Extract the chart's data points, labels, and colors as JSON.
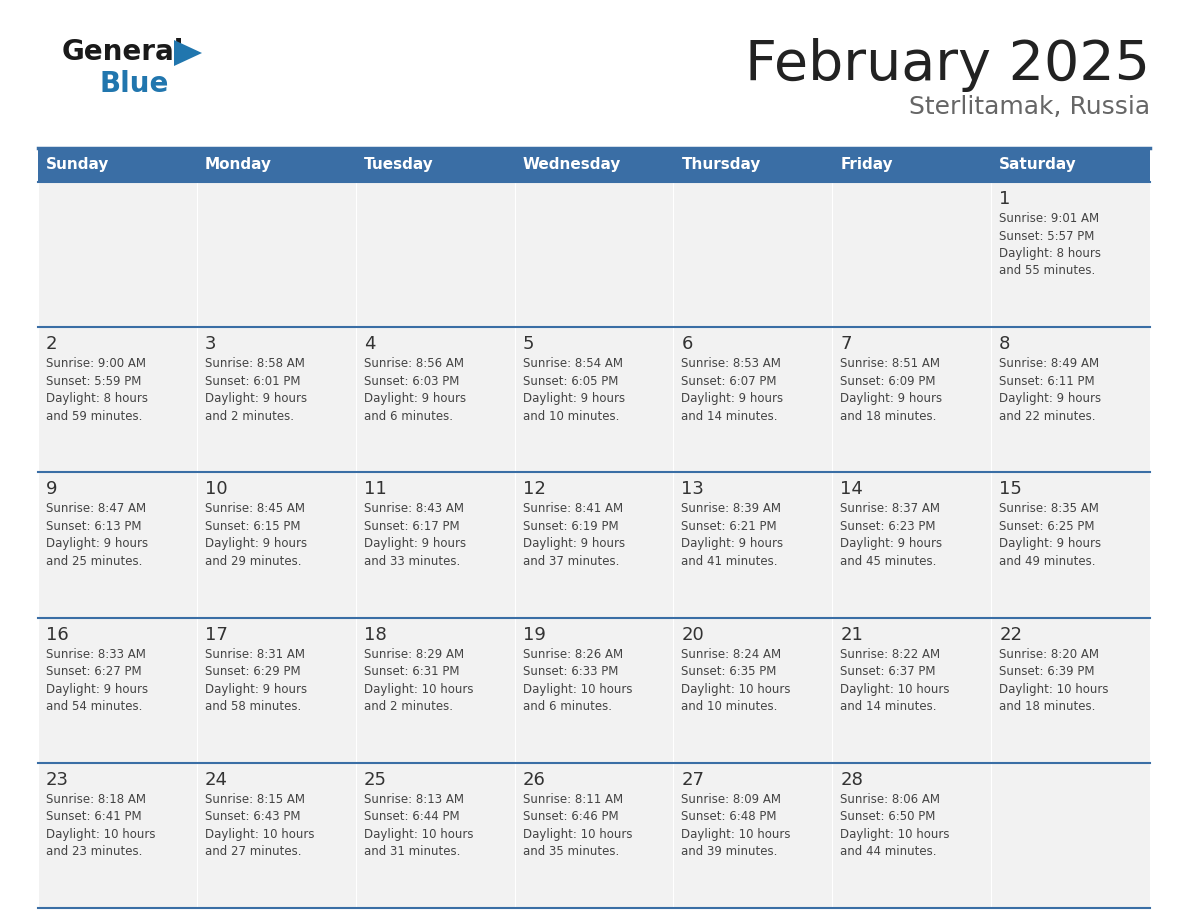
{
  "title": "February 2025",
  "subtitle": "Sterlitamak, Russia",
  "days_of_week": [
    "Sunday",
    "Monday",
    "Tuesday",
    "Wednesday",
    "Thursday",
    "Friday",
    "Saturday"
  ],
  "header_bg": "#3A6EA5",
  "header_text_color": "#FFFFFF",
  "cell_bg": "#F2F2F2",
  "border_color": "#3A6EA5",
  "text_color": "#444444",
  "day_num_color": "#333333",
  "title_color": "#222222",
  "subtitle_color": "#666666",
  "logo_general_color": "#1A1A1A",
  "logo_blue_color": "#2176AE",
  "weeks": [
    [
      {
        "day": null,
        "info": null
      },
      {
        "day": null,
        "info": null
      },
      {
        "day": null,
        "info": null
      },
      {
        "day": null,
        "info": null
      },
      {
        "day": null,
        "info": null
      },
      {
        "day": null,
        "info": null
      },
      {
        "day": 1,
        "info": "Sunrise: 9:01 AM\nSunset: 5:57 PM\nDaylight: 8 hours\nand 55 minutes."
      }
    ],
    [
      {
        "day": 2,
        "info": "Sunrise: 9:00 AM\nSunset: 5:59 PM\nDaylight: 8 hours\nand 59 minutes."
      },
      {
        "day": 3,
        "info": "Sunrise: 8:58 AM\nSunset: 6:01 PM\nDaylight: 9 hours\nand 2 minutes."
      },
      {
        "day": 4,
        "info": "Sunrise: 8:56 AM\nSunset: 6:03 PM\nDaylight: 9 hours\nand 6 minutes."
      },
      {
        "day": 5,
        "info": "Sunrise: 8:54 AM\nSunset: 6:05 PM\nDaylight: 9 hours\nand 10 minutes."
      },
      {
        "day": 6,
        "info": "Sunrise: 8:53 AM\nSunset: 6:07 PM\nDaylight: 9 hours\nand 14 minutes."
      },
      {
        "day": 7,
        "info": "Sunrise: 8:51 AM\nSunset: 6:09 PM\nDaylight: 9 hours\nand 18 minutes."
      },
      {
        "day": 8,
        "info": "Sunrise: 8:49 AM\nSunset: 6:11 PM\nDaylight: 9 hours\nand 22 minutes."
      }
    ],
    [
      {
        "day": 9,
        "info": "Sunrise: 8:47 AM\nSunset: 6:13 PM\nDaylight: 9 hours\nand 25 minutes."
      },
      {
        "day": 10,
        "info": "Sunrise: 8:45 AM\nSunset: 6:15 PM\nDaylight: 9 hours\nand 29 minutes."
      },
      {
        "day": 11,
        "info": "Sunrise: 8:43 AM\nSunset: 6:17 PM\nDaylight: 9 hours\nand 33 minutes."
      },
      {
        "day": 12,
        "info": "Sunrise: 8:41 AM\nSunset: 6:19 PM\nDaylight: 9 hours\nand 37 minutes."
      },
      {
        "day": 13,
        "info": "Sunrise: 8:39 AM\nSunset: 6:21 PM\nDaylight: 9 hours\nand 41 minutes."
      },
      {
        "day": 14,
        "info": "Sunrise: 8:37 AM\nSunset: 6:23 PM\nDaylight: 9 hours\nand 45 minutes."
      },
      {
        "day": 15,
        "info": "Sunrise: 8:35 AM\nSunset: 6:25 PM\nDaylight: 9 hours\nand 49 minutes."
      }
    ],
    [
      {
        "day": 16,
        "info": "Sunrise: 8:33 AM\nSunset: 6:27 PM\nDaylight: 9 hours\nand 54 minutes."
      },
      {
        "day": 17,
        "info": "Sunrise: 8:31 AM\nSunset: 6:29 PM\nDaylight: 9 hours\nand 58 minutes."
      },
      {
        "day": 18,
        "info": "Sunrise: 8:29 AM\nSunset: 6:31 PM\nDaylight: 10 hours\nand 2 minutes."
      },
      {
        "day": 19,
        "info": "Sunrise: 8:26 AM\nSunset: 6:33 PM\nDaylight: 10 hours\nand 6 minutes."
      },
      {
        "day": 20,
        "info": "Sunrise: 8:24 AM\nSunset: 6:35 PM\nDaylight: 10 hours\nand 10 minutes."
      },
      {
        "day": 21,
        "info": "Sunrise: 8:22 AM\nSunset: 6:37 PM\nDaylight: 10 hours\nand 14 minutes."
      },
      {
        "day": 22,
        "info": "Sunrise: 8:20 AM\nSunset: 6:39 PM\nDaylight: 10 hours\nand 18 minutes."
      }
    ],
    [
      {
        "day": 23,
        "info": "Sunrise: 8:18 AM\nSunset: 6:41 PM\nDaylight: 10 hours\nand 23 minutes."
      },
      {
        "day": 24,
        "info": "Sunrise: 8:15 AM\nSunset: 6:43 PM\nDaylight: 10 hours\nand 27 minutes."
      },
      {
        "day": 25,
        "info": "Sunrise: 8:13 AM\nSunset: 6:44 PM\nDaylight: 10 hours\nand 31 minutes."
      },
      {
        "day": 26,
        "info": "Sunrise: 8:11 AM\nSunset: 6:46 PM\nDaylight: 10 hours\nand 35 minutes."
      },
      {
        "day": 27,
        "info": "Sunrise: 8:09 AM\nSunset: 6:48 PM\nDaylight: 10 hours\nand 39 minutes."
      },
      {
        "day": 28,
        "info": "Sunrise: 8:06 AM\nSunset: 6:50 PM\nDaylight: 10 hours\nand 44 minutes."
      },
      {
        "day": null,
        "info": null
      }
    ]
  ]
}
